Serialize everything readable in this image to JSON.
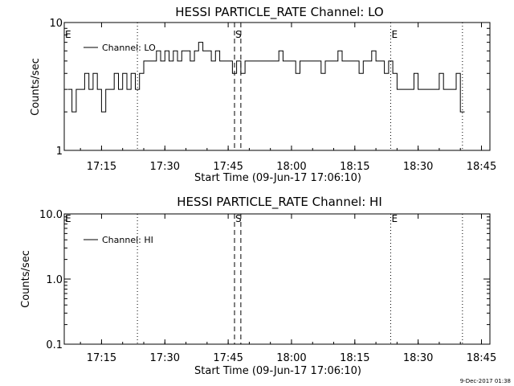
{
  "chart_data": [
    {
      "type": "line",
      "title": "HESSI PARTICLE_RATE Channel: LO",
      "xlabel": "Start Time (09-Jun-17 17:06:10)",
      "ylabel": "Counts/sec",
      "yscale": "log",
      "ylim": [
        1,
        10
      ],
      "xlim": [
        "17:06:10",
        "18:47:00"
      ],
      "x_ticks": [
        "17:15",
        "17:30",
        "17:45",
        "18:00",
        "18:15",
        "18:30",
        "18:45"
      ],
      "y_ticks": [
        "1",
        "10"
      ],
      "legend": [
        "Channel: LO"
      ],
      "legend_position": "top-left",
      "markers": [
        {
          "label": "E",
          "time": "17:06:10",
          "style": "dotted"
        },
        {
          "label": "",
          "time": "17:23:30",
          "style": "dotted"
        },
        {
          "label": "S",
          "time": "17:46:30",
          "style": "dashed"
        },
        {
          "label": "",
          "time": "17:48:00",
          "style": "dashed"
        },
        {
          "label": "E",
          "time": "18:23:30",
          "style": "dotted"
        },
        {
          "label": "",
          "time": "18:40:30",
          "style": "dotted"
        }
      ],
      "series": [
        {
          "name": "Channel: LO",
          "x": [
            "17:07",
            "17:08",
            "17:09",
            "17:10",
            "17:11",
            "17:12",
            "17:13",
            "17:14",
            "17:15",
            "17:16",
            "17:17",
            "17:18",
            "17:19",
            "17:20",
            "17:21",
            "17:22",
            "17:23",
            "17:24",
            "17:25",
            "17:26",
            "17:27",
            "17:28",
            "17:29",
            "17:30",
            "17:31",
            "17:32",
            "17:33",
            "17:34",
            "17:35",
            "17:36",
            "17:37",
            "17:38",
            "17:39",
            "17:40",
            "17:41",
            "17:42",
            "17:43",
            "17:44",
            "17:45",
            "17:46",
            "17:47",
            "17:48",
            "17:49",
            "17:50",
            "17:51",
            "17:52",
            "17:53",
            "17:54",
            "17:55",
            "17:56",
            "17:57",
            "17:58",
            "17:59",
            "18:00",
            "18:01",
            "18:02",
            "18:03",
            "18:04",
            "18:05",
            "18:06",
            "18:07",
            "18:08",
            "18:09",
            "18:10",
            "18:11",
            "18:12",
            "18:13",
            "18:14",
            "18:15",
            "18:16",
            "18:17",
            "18:18",
            "18:19",
            "18:20",
            "18:21",
            "18:22",
            "18:23",
            "18:24",
            "18:25",
            "18:26",
            "18:27",
            "18:28",
            "18:29",
            "18:30",
            "18:31",
            "18:32",
            "18:33",
            "18:34",
            "18:35",
            "18:36",
            "18:37",
            "18:38",
            "18:39",
            "18:40"
          ],
          "values": [
            3,
            2,
            3,
            3,
            4,
            3,
            4,
            3,
            2,
            3,
            3,
            4,
            3,
            4,
            3,
            4,
            3,
            4,
            5,
            5,
            5,
            6,
            5,
            6,
            5,
            6,
            5,
            6,
            6,
            5,
            6,
            7,
            6,
            6,
            5,
            6,
            5,
            5,
            5,
            4,
            5,
            4,
            5,
            5,
            5,
            5,
            5,
            5,
            5,
            5,
            6,
            5,
            5,
            5,
            4,
            5,
            5,
            5,
            5,
            5,
            4,
            5,
            5,
            5,
            6,
            5,
            5,
            5,
            5,
            4,
            5,
            5,
            6,
            5,
            5,
            4,
            5,
            4,
            3,
            3,
            3,
            3,
            4,
            3,
            3,
            3,
            3,
            3,
            4,
            3,
            3,
            3,
            4,
            2
          ]
        }
      ]
    },
    {
      "type": "line",
      "title": "HESSI PARTICLE_RATE Channel: HI",
      "xlabel": "Start Time (09-Jun-17 17:06:10)",
      "ylabel": "Counts/sec",
      "yscale": "log",
      "ylim": [
        0.1,
        10
      ],
      "xlim": [
        "17:06:10",
        "18:47:00"
      ],
      "x_ticks": [
        "17:15",
        "17:30",
        "17:45",
        "18:00",
        "18:15",
        "18:30",
        "18:45"
      ],
      "y_ticks": [
        "0.1",
        "1.0",
        "10.0"
      ],
      "legend": [
        "Channel: HI"
      ],
      "legend_position": "top-left",
      "markers": [
        {
          "label": "E",
          "time": "17:06:10",
          "style": "dotted"
        },
        {
          "label": "",
          "time": "17:23:30",
          "style": "dotted"
        },
        {
          "label": "S",
          "time": "17:46:30",
          "style": "dashed"
        },
        {
          "label": "",
          "time": "17:48:00",
          "style": "dashed"
        },
        {
          "label": "E",
          "time": "18:23:30",
          "style": "dotted"
        },
        {
          "label": "",
          "time": "18:40:30",
          "style": "dotted"
        }
      ],
      "series": [
        {
          "name": "Channel: HI",
          "x": [],
          "values": []
        }
      ]
    }
  ],
  "footer": {
    "timestamp": "9-Dec-2017 01:38"
  }
}
